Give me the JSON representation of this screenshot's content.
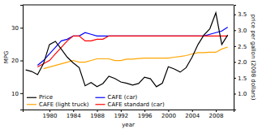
{
  "chart_data": {
    "type": "line",
    "xlabel": "year",
    "ylabel": "MPG",
    "y2label": "price per gallon (2008 dollars)",
    "xlim": [
      1975.5,
      2011
    ],
    "xticks": [
      1980,
      1984,
      1988,
      1992,
      1996,
      2000,
      2004,
      2008
    ],
    "ylim": [
      5,
      37
    ],
    "yticks": [
      10,
      20,
      30
    ],
    "y2lim": [
      0.5,
      3.8
    ],
    "y2ticks": [
      {
        "value": 1.0,
        "label": "1.0"
      },
      1.5,
      {
        "value": 2.0,
        "label": "2.0"
      },
      2.5,
      {
        "value": 3.0,
        "label": "3.0"
      },
      3.5
    ],
    "grid": false,
    "legend": "lower left",
    "series": [
      {
        "name": "Price",
        "color": "black",
        "axis": "y2",
        "x": [
          1976,
          1977,
          1978,
          1979,
          1980,
          1981,
          1982,
          1983,
          1984,
          1985,
          1986,
          1987,
          1988,
          1989,
          1990,
          1991,
          1992,
          1993,
          1994,
          1995,
          1996,
          1997,
          1998,
          1999,
          2000,
          2001,
          2002,
          2003,
          2004,
          2005,
          2006,
          2007,
          2008,
          2009,
          2010
        ],
        "values": [
          1.75,
          1.7,
          1.6,
          1.95,
          2.55,
          2.65,
          2.4,
          2.15,
          1.97,
          1.82,
          1.25,
          1.35,
          1.22,
          1.32,
          1.55,
          1.48,
          1.37,
          1.33,
          1.27,
          1.32,
          1.52,
          1.47,
          1.22,
          1.33,
          1.85,
          1.78,
          1.68,
          1.82,
          2.15,
          2.55,
          2.85,
          3.05,
          3.55,
          2.55,
          2.85
        ]
      },
      {
        "name": "CAFE (car)",
        "color": "blue",
        "x": [
          1978,
          1979,
          1980,
          1981,
          1982,
          1983,
          1984,
          1985,
          1986,
          1987,
          1988,
          1989,
          1990,
          1991,
          1992,
          1993,
          1994,
          1995,
          1996,
          1997,
          1998,
          1999,
          2000,
          2001,
          2002,
          2003,
          2004,
          2005,
          2006,
          2007,
          2008,
          2009,
          2010
        ],
        "values": [
          18.5,
          20.0,
          22.0,
          24.0,
          26.0,
          26.5,
          27.5,
          27.5,
          28.5,
          28.0,
          27.5,
          27.5,
          27.5,
          27.5,
          27.5,
          27.5,
          27.5,
          27.5,
          27.5,
          27.5,
          27.5,
          27.5,
          27.5,
          27.5,
          27.5,
          27.5,
          27.5,
          27.5,
          27.5,
          28.0,
          28.5,
          29.0,
          30.2
        ]
      },
      {
        "name": "CAFE (light truck)",
        "color": "#FFA500",
        "x": [
          1979,
          1980,
          1981,
          1982,
          1983,
          1984,
          1985,
          1986,
          1987,
          1988,
          1989,
          1990,
          1991,
          1992,
          1993,
          1994,
          1995,
          1996,
          1997,
          1998,
          1999,
          2000,
          2001,
          2002,
          2003,
          2004,
          2005,
          2006,
          2007,
          2008,
          2009,
          2010
        ],
        "values": [
          17.5,
          18.0,
          18.5,
          19.0,
          19.5,
          20.0,
          19.5,
          19.5,
          20.0,
          20.5,
          20.5,
          20.5,
          20.0,
          20.0,
          20.4,
          20.4,
          20.6,
          20.7,
          20.7,
          20.7,
          20.7,
          20.7,
          21.0,
          21.2,
          21.5,
          22.0,
          22.4,
          22.4,
          22.5,
          22.5,
          23.5,
          24.1
        ]
      },
      {
        "name": "CAFE standard (car)",
        "color": "red",
        "x": [
          1978,
          1979,
          1980,
          1981,
          1982,
          1983,
          1984,
          1985,
          1986,
          1987,
          1988,
          1989,
          1990,
          1991,
          1992,
          1993,
          1994,
          1995,
          1996,
          1997,
          1998,
          1999,
          2000,
          2001,
          2002,
          2003,
          2004,
          2005,
          2006,
          2007,
          2008,
          2009,
          2010
        ],
        "values": [
          18.0,
          19.0,
          20.0,
          22.0,
          24.0,
          26.0,
          27.5,
          27.5,
          26.0,
          26.0,
          26.5,
          26.5,
          27.5,
          27.5,
          27.5,
          27.5,
          27.5,
          27.5,
          27.5,
          27.5,
          27.5,
          27.5,
          27.5,
          27.5,
          27.5,
          27.5,
          27.5,
          27.5,
          27.5,
          27.5,
          27.5,
          27.5,
          27.5
        ]
      }
    ]
  }
}
